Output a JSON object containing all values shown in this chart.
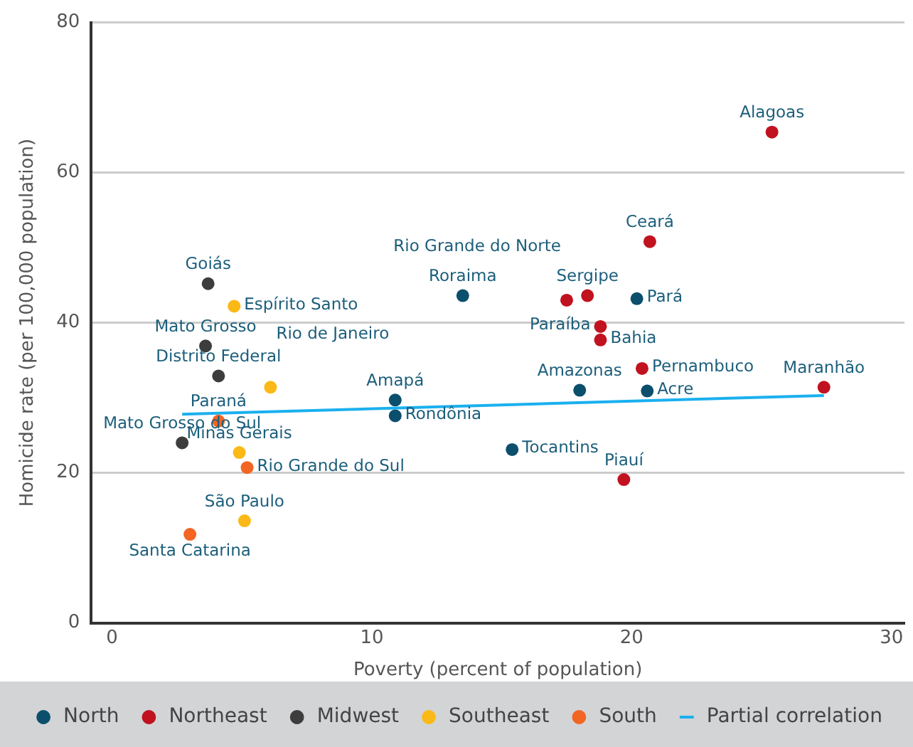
{
  "chart_data": {
    "type": "scatter",
    "xlabel": "Poverty (percent of population)",
    "ylabel": "Homicide rate (per 100,000 population)",
    "xlim": [
      -0.8,
      30.5
    ],
    "xticks": [
      0,
      10,
      20,
      30
    ],
    "ylim": [
      0,
      80
    ],
    "yticks": [
      0,
      20,
      40,
      60,
      80
    ],
    "grid": "y",
    "legend": "bottom",
    "marker": "circle",
    "series": [
      {
        "name": "North",
        "color": "#0b4f6c",
        "x": [
          13.5,
          20.2,
          18.0,
          20.6,
          10.9,
          10.9,
          15.4
        ],
        "values": [
          43.6,
          43.2,
          31.0,
          30.9,
          29.7,
          27.6,
          23.1
        ]
      },
      {
        "name": "Northeast",
        "color": "#c1121f",
        "x": [
          25.4,
          20.7,
          18.3,
          17.5,
          18.8,
          18.8,
          20.4,
          19.7,
          27.4
        ],
        "values": [
          65.4,
          50.8,
          43.6,
          43.0,
          39.5,
          37.7,
          33.9,
          19.1,
          31.4
        ]
      },
      {
        "name": "Midwest",
        "color": "#3d3d3d",
        "x": [
          3.7,
          3.6,
          4.1,
          2.7
        ],
        "values": [
          45.2,
          36.9,
          32.9,
          24.0
        ]
      },
      {
        "name": "Southeast",
        "color": "#fbb917",
        "x": [
          4.7,
          6.1,
          4.9,
          5.1
        ],
        "values": [
          42.2,
          31.4,
          22.7,
          13.6
        ]
      },
      {
        "name": "South",
        "color": "#f26522",
        "x": [
          4.1,
          5.2,
          3.0
        ],
        "values": [
          26.9,
          20.7,
          11.8
        ]
      },
      {
        "name": "Partial correlation",
        "type": "line",
        "marker": "none",
        "color": "#1ab0ef",
        "x": [
          2.7,
          27.4
        ],
        "values": [
          27.8,
          30.3
        ]
      }
    ],
    "annotations": [
      {
        "text": "Roraima",
        "x": 13.5,
        "y": 43.6
      },
      {
        "text": "Pará",
        "x": 20.2,
        "y": 43.2
      },
      {
        "text": "Amazonas",
        "x": 18.0,
        "y": 31.0
      },
      {
        "text": "Acre",
        "x": 20.6,
        "y": 30.9
      },
      {
        "text": "Amapá",
        "x": 10.9,
        "y": 29.7
      },
      {
        "text": "Rondônia",
        "x": 10.9,
        "y": 27.6
      },
      {
        "text": "Tocantins",
        "x": 15.4,
        "y": 23.1
      },
      {
        "text": "Alagoas",
        "x": 25.4,
        "y": 65.4
      },
      {
        "text": "Ceará",
        "x": 20.7,
        "y": 50.8
      },
      {
        "text": "Sergipe",
        "x": 18.3,
        "y": 43.6
      },
      {
        "text": "Rio Grande do Norte",
        "x": 17.5,
        "y": 43.0
      },
      {
        "text": "Paraíba",
        "x": 18.8,
        "y": 39.5
      },
      {
        "text": "Bahia",
        "x": 18.8,
        "y": 37.7
      },
      {
        "text": "Pernambuco",
        "x": 20.4,
        "y": 33.9
      },
      {
        "text": "Piauí",
        "x": 19.7,
        "y": 19.1
      },
      {
        "text": "Maranhão",
        "x": 27.4,
        "y": 31.4
      },
      {
        "text": "Goiás",
        "x": 3.7,
        "y": 45.2
      },
      {
        "text": "Mato Grosso",
        "x": 3.6,
        "y": 36.9
      },
      {
        "text": "Distrito Federal",
        "x": 4.1,
        "y": 32.9
      },
      {
        "text": "Mato Grosso do Sul",
        "x": 2.7,
        "y": 24.0
      },
      {
        "text": "Espírito Santo",
        "x": 4.7,
        "y": 42.2
      },
      {
        "text": "Rio de Janeiro",
        "x": 6.1,
        "y": 31.4
      },
      {
        "text": "Minas Gerais",
        "x": 4.9,
        "y": 22.7
      },
      {
        "text": "São Paulo",
        "x": 5.1,
        "y": 13.6
      },
      {
        "text": "Paraná",
        "x": 4.1,
        "y": 26.9
      },
      {
        "text": "Rio Grande do Sul",
        "x": 5.2,
        "y": 20.7
      },
      {
        "text": "Santa Catarina",
        "x": 3.0,
        "y": 11.8
      }
    ]
  }
}
